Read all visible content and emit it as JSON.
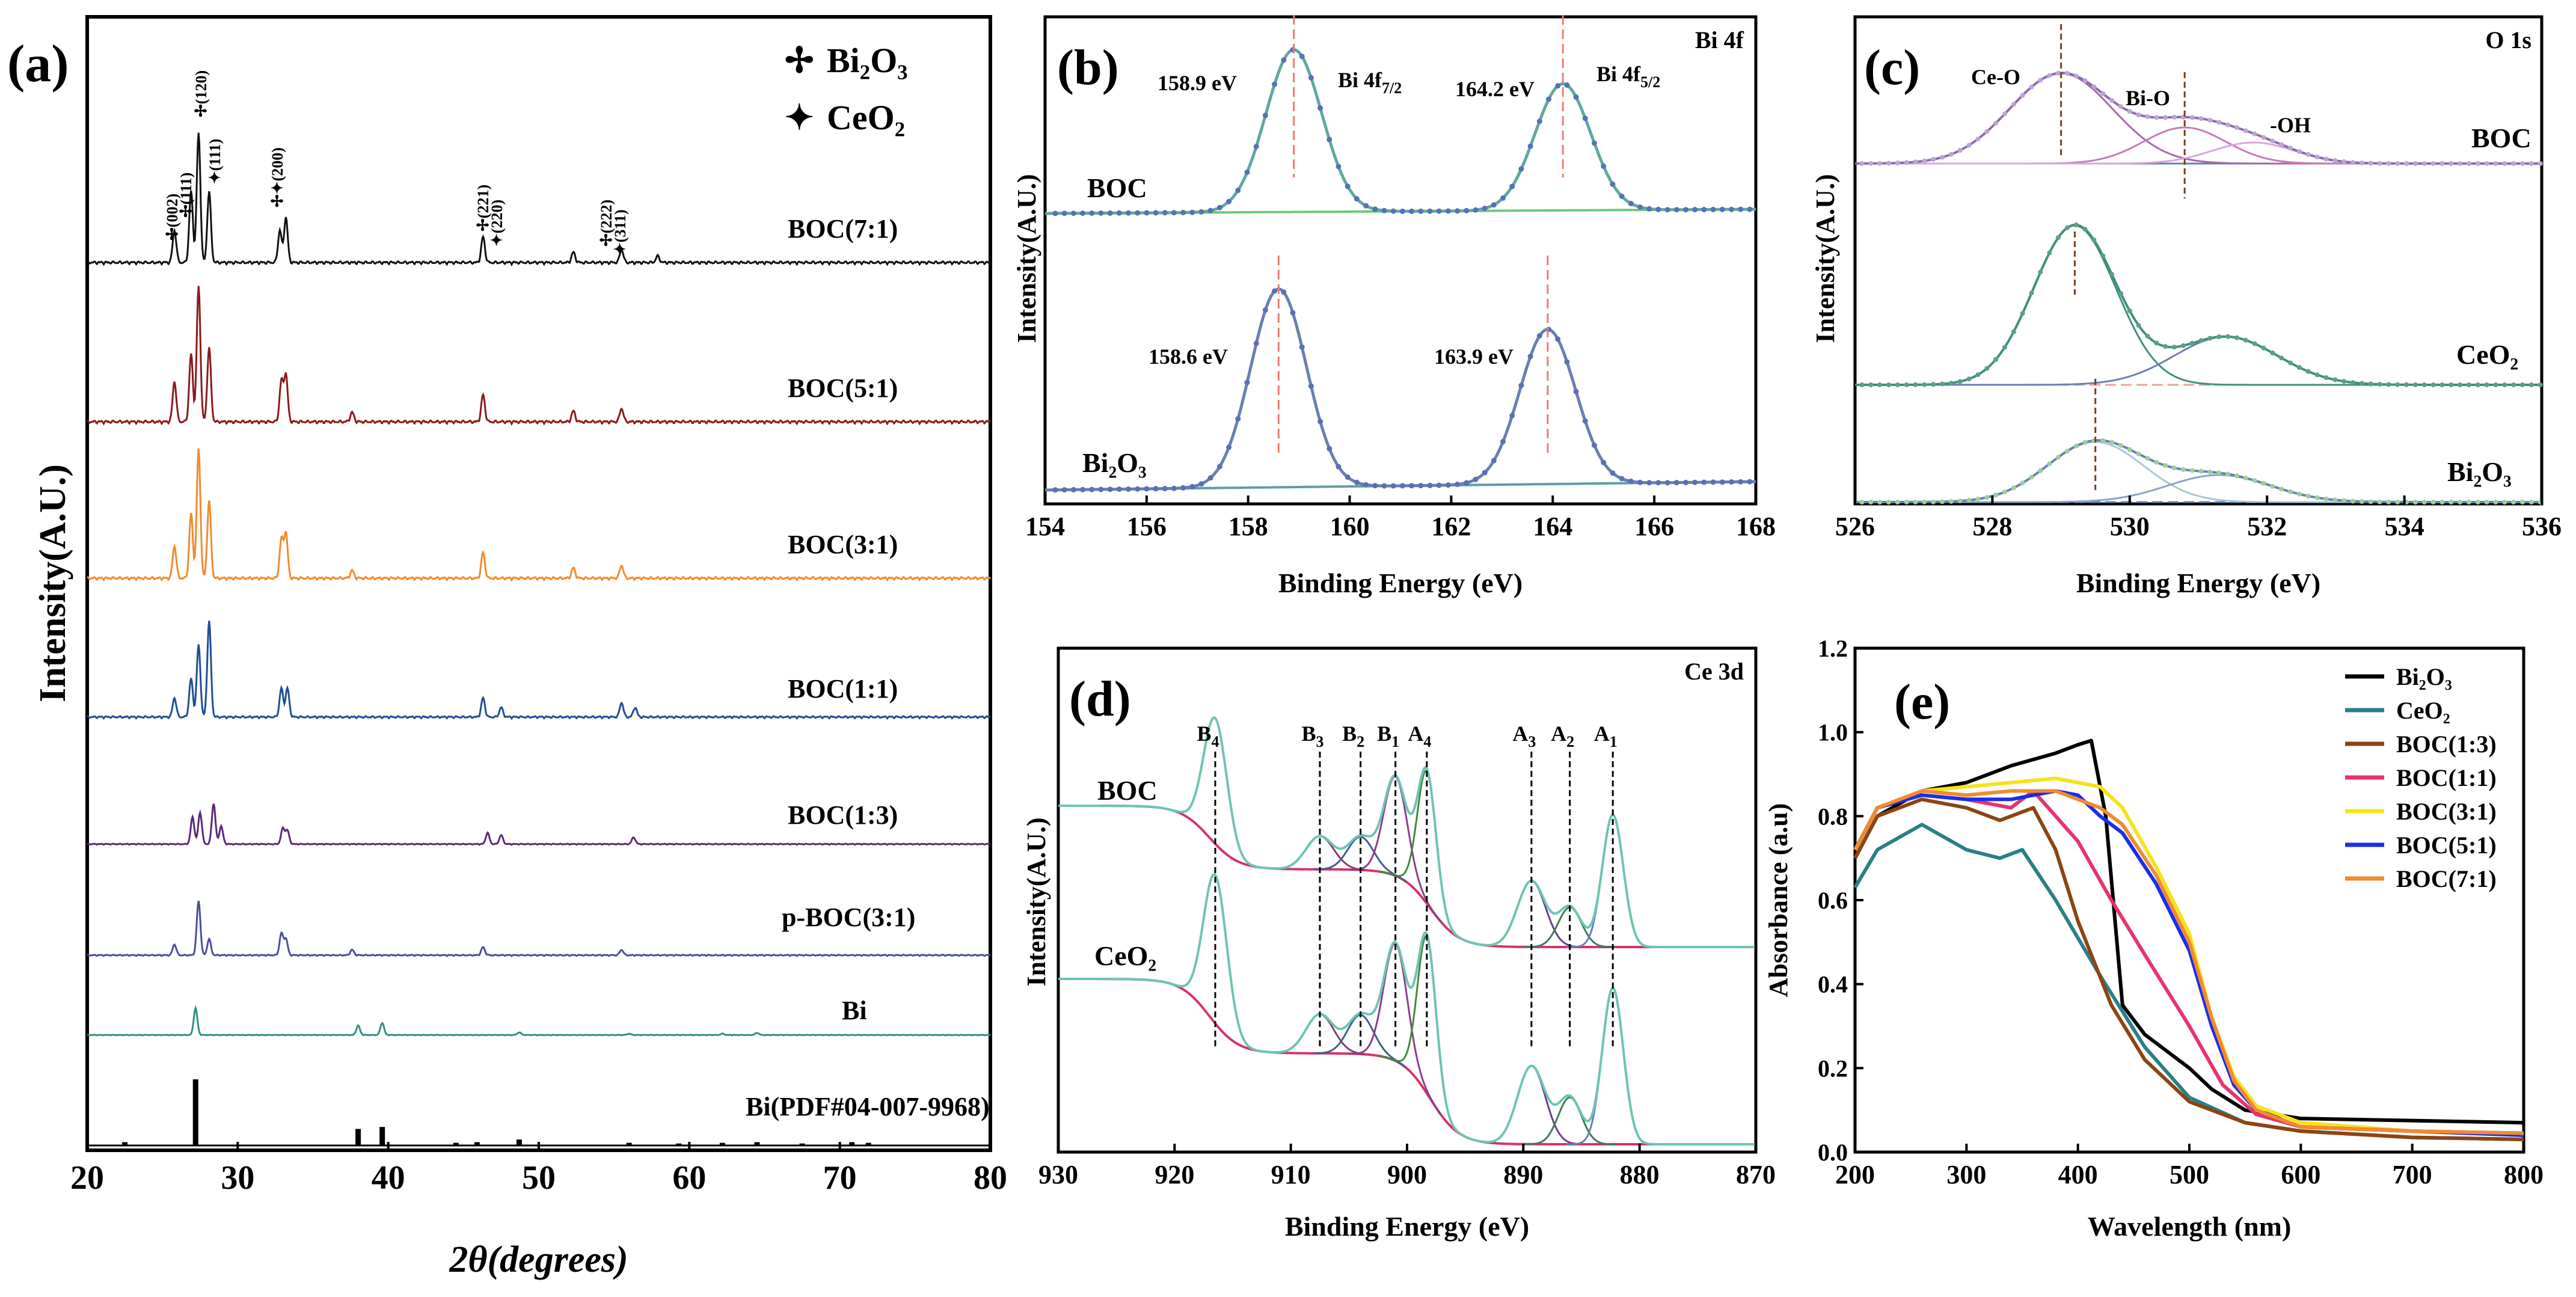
{
  "colors": {
    "axis": "#000000",
    "bg": "#ffffff"
  },
  "chart_data": [
    {
      "panel": "(a)",
      "type": "line",
      "xlabel": "2θ(degrees)",
      "ylabel": "Intensity(A.U.)",
      "xlim": [
        20,
        80
      ],
      "xticks": [
        "20",
        "30",
        "40",
        "50",
        "60",
        "70",
        "80"
      ],
      "legend": {
        "bi2o3": "Bi₂O₃",
        "ceo2": "CeO₂",
        "placement": "top-right"
      },
      "peak_labels": [
        "(002)",
        "(111)",
        "(120)",
        "(111)",
        "(200)",
        "(221)",
        "(220)",
        "(222)",
        "(311)"
      ],
      "series": [
        {
          "name": "BOC(7:1)",
          "color": "#111111"
        },
        {
          "name": "BOC(5:1)",
          "color": "#8b1a1a"
        },
        {
          "name": "BOC(3:1)",
          "color": "#f28a30"
        },
        {
          "name": "BOC(1:1)",
          "color": "#1f4e96"
        },
        {
          "name": "BOC(1:3)",
          "color": "#5a2a7a"
        },
        {
          "name": "p-BOC(3:1)",
          "color": "#4a4f9a"
        },
        {
          "name": "Bi",
          "color": "#2f8f88"
        },
        {
          "name": "Bi(PDF#04-007-9968)",
          "color": "#000000"
        }
      ],
      "main_peaks": [
        25.8,
        26.9,
        27.4,
        28.1,
        32.8,
        33.2,
        46.3,
        47.5,
        55.5,
        56.4
      ],
      "ref_lines": [
        {
          "x": 22.5,
          "h": 0.05
        },
        {
          "x": 27.2,
          "h": 1.0
        },
        {
          "x": 38.0,
          "h": 0.25
        },
        {
          "x": 39.6,
          "h": 0.28
        },
        {
          "x": 44.5,
          "h": 0.04
        },
        {
          "x": 45.9,
          "h": 0.05
        },
        {
          "x": 48.7,
          "h": 0.09
        },
        {
          "x": 56.0,
          "h": 0.04
        },
        {
          "x": 59.3,
          "h": 0.03
        },
        {
          "x": 62.2,
          "h": 0.04
        },
        {
          "x": 64.5,
          "h": 0.05
        },
        {
          "x": 67.5,
          "h": 0.03
        },
        {
          "x": 70.8,
          "h": 0.05
        },
        {
          "x": 71.9,
          "h": 0.04
        }
      ]
    },
    {
      "panel": "(b)",
      "type": "line",
      "title": "Bi 4f",
      "xlabel": "Binding Energy (eV)",
      "ylabel": "Intensity(A.U.)",
      "xlim": [
        154,
        168
      ],
      "xticks": [
        "154",
        "156",
        "158",
        "160",
        "162",
        "164",
        "166",
        "168"
      ],
      "peak_names": [
        "Bi 4f",
        "7/2",
        "Bi 4f",
        "5/2"
      ],
      "samples": [
        {
          "name": "BOC",
          "peaks": [
            {
              "x": 158.9,
              "label": "158.9 eV"
            },
            {
              "x": 164.2,
              "label": "164.2 eV"
            }
          ]
        },
        {
          "name": "Bi₂O₃",
          "peaks": [
            {
              "x": 158.6,
              "label": "158.6 eV"
            },
            {
              "x": 163.9,
              "label": "163.9 eV"
            }
          ]
        }
      ]
    },
    {
      "panel": "(c)",
      "type": "line",
      "title": "O 1s",
      "xlabel": "Binding Energy (eV)",
      "ylabel": "Intensity(A.U.)",
      "xlim": [
        526,
        536
      ],
      "xticks": [
        "526",
        "528",
        "530",
        "532",
        "534",
        "536"
      ],
      "components": [
        "Ce-O",
        "Bi-O",
        "-OH"
      ],
      "samples": [
        {
          "name": "BOC",
          "peaks": [
            529.0,
            530.8,
            531.8
          ]
        },
        {
          "name": "CeO₂",
          "peaks": [
            529.2,
            531.4
          ]
        },
        {
          "name": "Bi₂O₃",
          "peaks": [
            529.5,
            531.3
          ]
        }
      ]
    },
    {
      "panel": "(d)",
      "type": "line",
      "title": "Ce 3d",
      "xlabel": "Binding Energy (eV)",
      "ylabel": "Intensity(A.U.)",
      "xlim": [
        930,
        870
      ],
      "xticks": [
        "930",
        "920",
        "910",
        "900",
        "890",
        "880",
        "870"
      ],
      "samples": [
        "BOC",
        "CeO₂"
      ],
      "peaks": [
        {
          "label": "B",
          "sub": "4",
          "x": 916.5
        },
        {
          "label": "B",
          "sub": "3",
          "x": 907.5
        },
        {
          "label": "B",
          "sub": "2",
          "x": 904.0
        },
        {
          "label": "B",
          "sub": "1",
          "x": 901.0
        },
        {
          "label": "A",
          "sub": "4",
          "x": 898.3
        },
        {
          "label": "A",
          "sub": "3",
          "x": 889.3
        },
        {
          "label": "A",
          "sub": "2",
          "x": 886.0
        },
        {
          "label": "A",
          "sub": "1",
          "x": 882.3
        }
      ]
    },
    {
      "panel": "(e)",
      "type": "line",
      "xlabel": "Wavelength (nm)",
      "ylabel": "Absorbance (a.u)",
      "xlim": [
        200,
        800
      ],
      "ylim": [
        0.0,
        1.2
      ],
      "xticks": [
        "200",
        "300",
        "400",
        "500",
        "600",
        "700",
        "800"
      ],
      "yticks": [
        "0.0",
        "0.2",
        "0.4",
        "0.6",
        "0.8",
        "1.0",
        "1.2"
      ],
      "series": [
        {
          "name": "Bi₂O₃",
          "color": "#000000",
          "x": [
            200,
            220,
            260,
            300,
            340,
            380,
            400,
            412,
            425,
            440,
            460,
            480,
            500,
            520,
            550,
            600,
            700,
            800
          ],
          "y": [
            0.7,
            0.8,
            0.86,
            0.88,
            0.92,
            0.95,
            0.97,
            0.98,
            0.8,
            0.35,
            0.28,
            0.24,
            0.2,
            0.15,
            0.1,
            0.08,
            0.075,
            0.07
          ]
        },
        {
          "name": "CeO₂",
          "color": "#2a7f86",
          "x": [
            200,
            220,
            260,
            300,
            330,
            350,
            380,
            420,
            460,
            500,
            550,
            600,
            700,
            800
          ],
          "y": [
            0.63,
            0.72,
            0.78,
            0.72,
            0.7,
            0.72,
            0.6,
            0.42,
            0.25,
            0.13,
            0.07,
            0.05,
            0.035,
            0.03
          ]
        },
        {
          "name": "BOC(1:3)",
          "color": "#8b4513",
          "x": [
            200,
            220,
            260,
            300,
            330,
            360,
            380,
            400,
            430,
            460,
            500,
            550,
            600,
            700,
            800
          ],
          "y": [
            0.7,
            0.8,
            0.84,
            0.82,
            0.79,
            0.82,
            0.72,
            0.55,
            0.35,
            0.22,
            0.12,
            0.07,
            0.05,
            0.035,
            0.03
          ]
        },
        {
          "name": "BOC(1:1)",
          "color": "#e6336e",
          "x": [
            200,
            220,
            260,
            300,
            340,
            360,
            380,
            400,
            430,
            460,
            500,
            530,
            560,
            600,
            700,
            800
          ],
          "y": [
            0.72,
            0.82,
            0.85,
            0.84,
            0.82,
            0.86,
            0.8,
            0.74,
            0.6,
            0.47,
            0.3,
            0.16,
            0.09,
            0.06,
            0.05,
            0.045
          ]
        },
        {
          "name": "BOC(3:1)",
          "color": "#f5e31a",
          "x": [
            200,
            220,
            260,
            300,
            340,
            380,
            400,
            420,
            440,
            470,
            500,
            520,
            540,
            560,
            600,
            700,
            800
          ],
          "y": [
            0.72,
            0.82,
            0.86,
            0.87,
            0.88,
            0.89,
            0.88,
            0.87,
            0.82,
            0.68,
            0.52,
            0.32,
            0.18,
            0.11,
            0.07,
            0.05,
            0.04
          ]
        },
        {
          "name": "BOC(5:1)",
          "color": "#1a2ee6",
          "x": [
            200,
            220,
            260,
            300,
            340,
            380,
            400,
            420,
            440,
            470,
            500,
            520,
            540,
            560,
            600,
            700,
            800
          ],
          "y": [
            0.72,
            0.82,
            0.85,
            0.84,
            0.84,
            0.86,
            0.85,
            0.8,
            0.76,
            0.64,
            0.48,
            0.3,
            0.16,
            0.1,
            0.06,
            0.05,
            0.04
          ]
        },
        {
          "name": "BOC(7:1)",
          "color": "#f28a30",
          "x": [
            200,
            220,
            260,
            300,
            340,
            380,
            400,
            420,
            440,
            470,
            500,
            520,
            540,
            560,
            600,
            700,
            800
          ],
          "y": [
            0.72,
            0.82,
            0.86,
            0.85,
            0.86,
            0.86,
            0.84,
            0.82,
            0.78,
            0.66,
            0.5,
            0.32,
            0.17,
            0.1,
            0.06,
            0.05,
            0.045
          ]
        }
      ]
    }
  ]
}
